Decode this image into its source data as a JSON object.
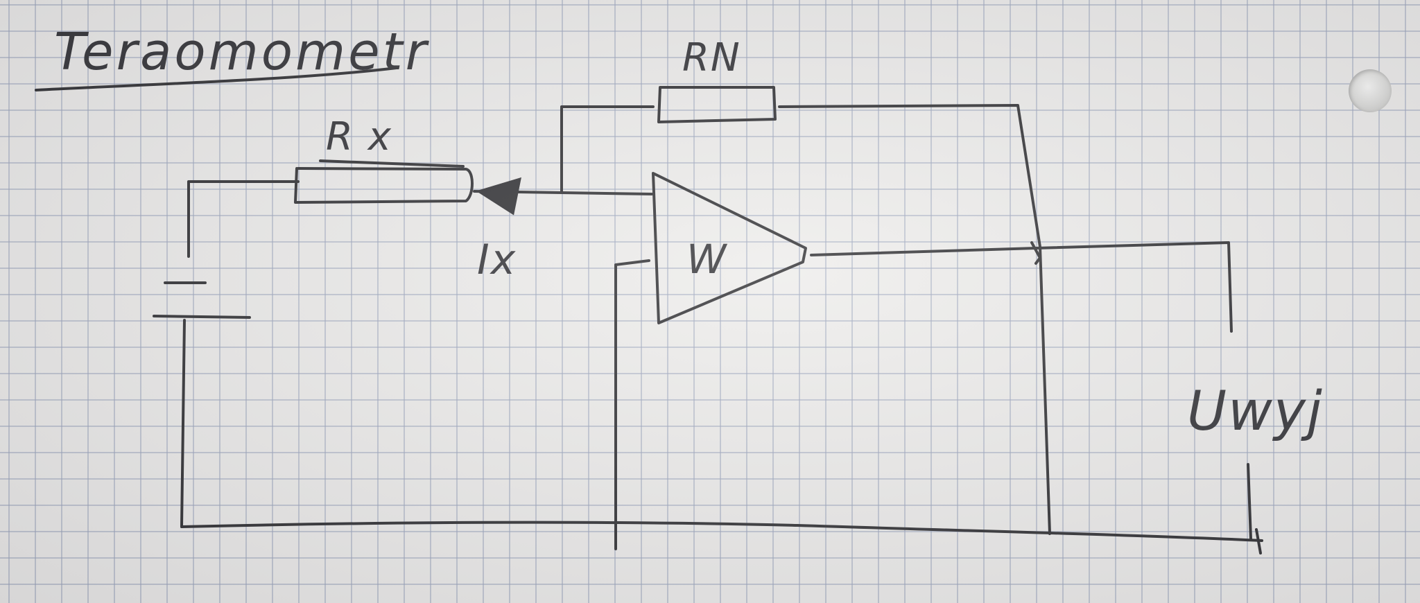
{
  "title": "Teraomometr",
  "labels": {
    "rx": "R x",
    "rn": "RN",
    "ix": "Ix",
    "opamp": "W",
    "uwyj": "Uwyj"
  },
  "colors": {
    "paper": "#ecebe9",
    "grid": "#96a0b9",
    "ink": "#1f1f22"
  }
}
